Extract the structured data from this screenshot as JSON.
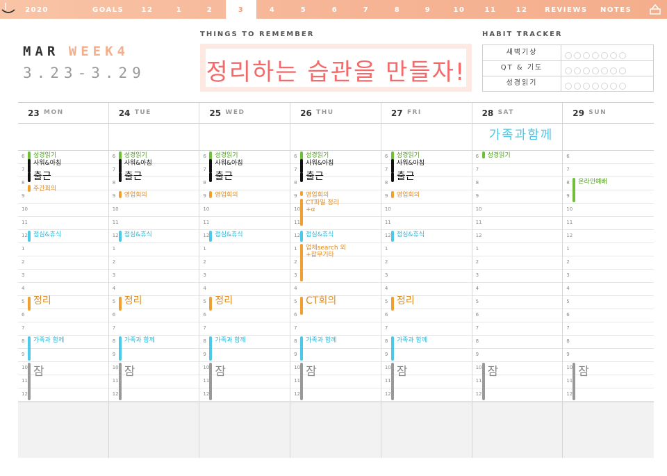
{
  "tabs": [
    "2020",
    "GOALS",
    "12",
    "1",
    "2",
    "3",
    "4",
    "5",
    "6",
    "7",
    "8",
    "9",
    "10",
    "11",
    "12",
    "REVIEWS",
    "NOTES"
  ],
  "active_tab": "3",
  "header": {
    "month": "MAR",
    "week": "WEEK4",
    "range": "3.23-3.29",
    "remember_label": "THINGS TO REMEMBER",
    "remember_text": "정리하는 습관을 만들자!",
    "habit_label": "HABIT TRACKER"
  },
  "habits": [
    {
      "name": "새벽기상",
      "dots": 7
    },
    {
      "name": "QT & 기도",
      "dots": 7
    },
    {
      "name": "성경읽기",
      "dots": 7
    }
  ],
  "hours": [
    "6",
    "7",
    "8",
    "9",
    "10",
    "11",
    "12",
    "1",
    "2",
    "3",
    "4",
    "5",
    "6",
    "7",
    "8",
    "9",
    "10",
    "11",
    "12"
  ],
  "colors": {
    "green": "#6fbf3a",
    "black": "#111111",
    "orange": "#f0a030",
    "blue": "#4cc9e8",
    "gray": "#999999",
    "accent": "#f4ae8c"
  },
  "days": [
    {
      "num": "23",
      "name": "MON",
      "allday": "",
      "events": [
        {
          "text": "성경읽기",
          "start": 0,
          "len": 1,
          "color": "green",
          "tcolor": "#4d9a1f"
        },
        {
          "text": "사워&아침",
          "start": 0.6,
          "len": 1.2,
          "color": "black",
          "tcolor": "#111"
        },
        {
          "text": "출근",
          "start": 1.6,
          "len": 0.9,
          "color": "black",
          "tcolor": "#111",
          "big": true
        },
        {
          "text": "주간회의",
          "start": 2.5,
          "len": 0.7,
          "color": "orange",
          "tcolor": "#e08a20"
        },
        {
          "text": "점심&휴식",
          "start": 6,
          "len": 1,
          "color": "blue",
          "tcolor": "#2cb5d8"
        },
        {
          "text": "정리",
          "start": 11,
          "len": 1.2,
          "color": "orange",
          "tcolor": "#e08a20",
          "big": true
        },
        {
          "text": "가족과 함께",
          "start": 14,
          "len": 2,
          "color": "blue",
          "tcolor": "#2cb5d8"
        },
        {
          "text": "잠",
          "start": 16,
          "len": 3,
          "color": "gray",
          "tcolor": "#888",
          "huge": true
        }
      ]
    },
    {
      "num": "24",
      "name": "TUE",
      "allday": "",
      "events": [
        {
          "text": "성경읽기",
          "start": 0,
          "len": 1,
          "color": "green",
          "tcolor": "#4d9a1f"
        },
        {
          "text": "사워&아침",
          "start": 0.6,
          "len": 1.2,
          "color": "black",
          "tcolor": "#111"
        },
        {
          "text": "출근",
          "start": 1.6,
          "len": 0.9,
          "color": "black",
          "tcolor": "#111",
          "big": true
        },
        {
          "text": "영업회의",
          "start": 3,
          "len": 0.7,
          "color": "orange",
          "tcolor": "#e08a20"
        },
        {
          "text": "점심&휴식",
          "start": 6,
          "len": 1,
          "color": "blue",
          "tcolor": "#2cb5d8"
        },
        {
          "text": "정리",
          "start": 11,
          "len": 1.2,
          "color": "orange",
          "tcolor": "#e08a20",
          "big": true
        },
        {
          "text": "가족과 함께",
          "start": 14,
          "len": 2,
          "color": "blue",
          "tcolor": "#2cb5d8"
        },
        {
          "text": "잠",
          "start": 16,
          "len": 3,
          "color": "gray",
          "tcolor": "#888",
          "huge": true
        }
      ]
    },
    {
      "num": "25",
      "name": "WED",
      "allday": "",
      "events": [
        {
          "text": "성경읽기",
          "start": 0,
          "len": 1,
          "color": "green",
          "tcolor": "#4d9a1f"
        },
        {
          "text": "사워&아침",
          "start": 0.6,
          "len": 1.2,
          "color": "black",
          "tcolor": "#111"
        },
        {
          "text": "출근",
          "start": 1.6,
          "len": 0.9,
          "color": "black",
          "tcolor": "#111",
          "big": true
        },
        {
          "text": "영업회의",
          "start": 3,
          "len": 0.7,
          "color": "orange",
          "tcolor": "#e08a20"
        },
        {
          "text": "점심&휴식",
          "start": 6,
          "len": 1,
          "color": "blue",
          "tcolor": "#2cb5d8"
        },
        {
          "text": "정리",
          "start": 11,
          "len": 1.2,
          "color": "orange",
          "tcolor": "#e08a20",
          "big": true
        },
        {
          "text": "가족과 함께",
          "start": 14,
          "len": 2,
          "color": "blue",
          "tcolor": "#2cb5d8"
        },
        {
          "text": "잠",
          "start": 16,
          "len": 3,
          "color": "gray",
          "tcolor": "#888",
          "huge": true
        }
      ]
    },
    {
      "num": "26",
      "name": "THU",
      "allday": "",
      "events": [
        {
          "text": "성경읽기",
          "start": 0,
          "len": 1,
          "color": "green",
          "tcolor": "#4d9a1f"
        },
        {
          "text": "사워&아침",
          "start": 0.6,
          "len": 1.2,
          "color": "black",
          "tcolor": "#111"
        },
        {
          "text": "출근",
          "start": 1.6,
          "len": 0.9,
          "color": "black",
          "tcolor": "#111",
          "big": true
        },
        {
          "text": "영업회의",
          "start": 3,
          "len": 0.5,
          "color": "orange",
          "tcolor": "#e08a20"
        },
        {
          "text": "CT파일 정리+α",
          "start": 3.6,
          "len": 2.2,
          "color": "orange",
          "tcolor": "#e08a20"
        },
        {
          "text": "점심&휴식",
          "start": 6,
          "len": 1,
          "color": "blue",
          "tcolor": "#2cb5d8"
        },
        {
          "text": "업체search 외 +잡무기타",
          "start": 7,
          "len": 3,
          "color": "orange",
          "tcolor": "#e08a20"
        },
        {
          "text": "CT회의",
          "start": 11,
          "len": 1.5,
          "color": "orange",
          "tcolor": "#e08a20",
          "big": true
        },
        {
          "text": "가족과 함께",
          "start": 14,
          "len": 2,
          "color": "blue",
          "tcolor": "#2cb5d8"
        },
        {
          "text": "잠",
          "start": 16,
          "len": 3,
          "color": "gray",
          "tcolor": "#888",
          "huge": true
        }
      ]
    },
    {
      "num": "27",
      "name": "FRI",
      "allday": "",
      "events": [
        {
          "text": "성경읽기",
          "start": 0,
          "len": 1,
          "color": "green",
          "tcolor": "#4d9a1f"
        },
        {
          "text": "사워&아침",
          "start": 0.6,
          "len": 1.2,
          "color": "black",
          "tcolor": "#111"
        },
        {
          "text": "출근",
          "start": 1.6,
          "len": 0.9,
          "color": "black",
          "tcolor": "#111",
          "big": true
        },
        {
          "text": "영업회의",
          "start": 3,
          "len": 0.7,
          "color": "orange",
          "tcolor": "#e08a20"
        },
        {
          "text": "점심&휴식",
          "start": 6,
          "len": 1,
          "color": "blue",
          "tcolor": "#2cb5d8"
        },
        {
          "text": "정리",
          "start": 11,
          "len": 1.2,
          "color": "orange",
          "tcolor": "#e08a20",
          "big": true
        },
        {
          "text": "가족과 함께",
          "start": 14,
          "len": 2,
          "color": "blue",
          "tcolor": "#2cb5d8"
        },
        {
          "text": "잠",
          "start": 16,
          "len": 3,
          "color": "gray",
          "tcolor": "#888",
          "huge": true
        }
      ]
    },
    {
      "num": "28",
      "name": "SAT",
      "allday": "가족과함께",
      "events": [
        {
          "text": "성경읽기",
          "start": 0,
          "len": 0.7,
          "color": "green",
          "tcolor": "#4d9a1f"
        },
        {
          "text": "잠",
          "start": 16,
          "len": 3,
          "color": "gray",
          "tcolor": "#888",
          "huge": true
        }
      ]
    },
    {
      "num": "29",
      "name": "SUN",
      "allday": "",
      "events": [
        {
          "text": "온라인예배",
          "start": 2,
          "len": 2,
          "color": "green",
          "tcolor": "#4d9a1f"
        },
        {
          "text": "잠",
          "start": 16,
          "len": 3,
          "color": "gray",
          "tcolor": "#888",
          "huge": true
        }
      ]
    }
  ]
}
